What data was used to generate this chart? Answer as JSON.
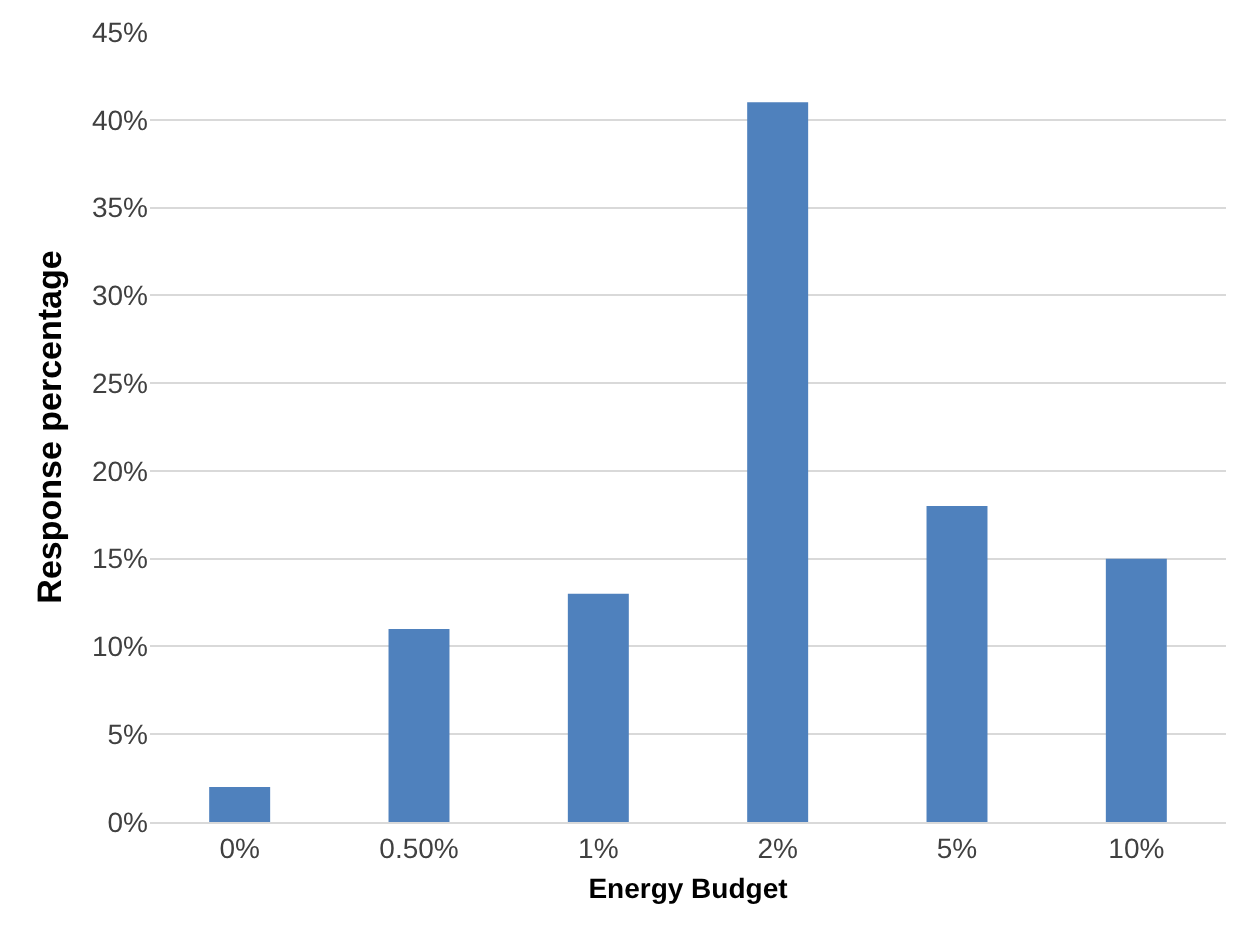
{
  "chart_data": {
    "type": "bar",
    "xlabel": "Energy Budget",
    "ylabel": "Response percentage",
    "categories": [
      "0%",
      "0.50%",
      "1%",
      "2%",
      "5%",
      "10%"
    ],
    "values": [
      2,
      11,
      13,
      41,
      18,
      15
    ],
    "color": "#4f81bd",
    "ylim": [
      0,
      45
    ],
    "yticks": [
      {
        "value": 0,
        "label": "0%"
      },
      {
        "value": 5,
        "label": "5%"
      },
      {
        "value": 10,
        "label": "10%"
      },
      {
        "value": 15,
        "label": "15%"
      },
      {
        "value": 20,
        "label": "20%"
      },
      {
        "value": 25,
        "label": "25%"
      },
      {
        "value": 30,
        "label": "30%"
      },
      {
        "value": 35,
        "label": "35%"
      },
      {
        "value": 40,
        "label": "40%"
      },
      {
        "value": 45,
        "label": "45%"
      }
    ],
    "grid": "y"
  }
}
